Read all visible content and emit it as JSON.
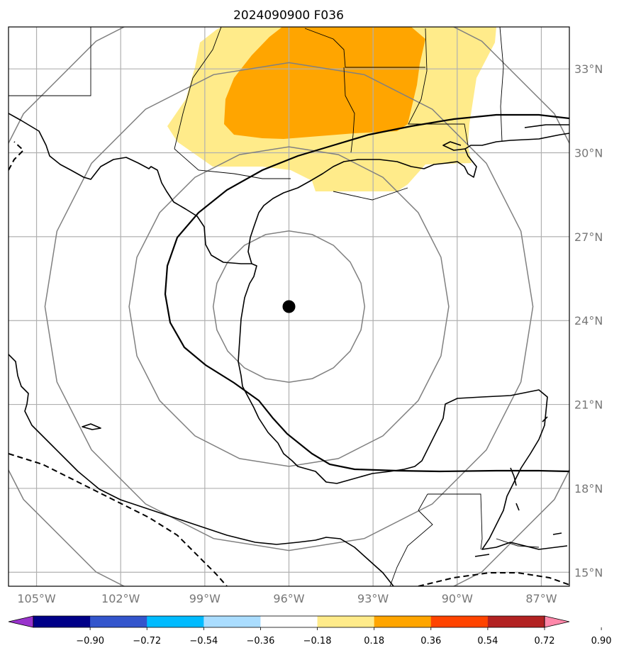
{
  "title": "2024090900 F036",
  "map": {
    "lon_range": [
      -106,
      -86
    ],
    "lat_range": [
      14.5,
      34.5
    ],
    "lon_ticks": [
      -105,
      -102,
      -99,
      -96,
      -93,
      -90,
      -87
    ],
    "lat_ticks": [
      15,
      18,
      21,
      24,
      27,
      30,
      33
    ],
    "lon_labels": [
      "105°W",
      "102°W",
      "99°W",
      "96°W",
      "93°W",
      "90°W",
      "87°W"
    ],
    "lat_labels": [
      "15°N",
      "18°N",
      "21°N",
      "24°N",
      "27°N",
      "30°N",
      "33°N"
    ],
    "center": {
      "lon": -96.0,
      "lat": 24.5
    },
    "range_rings_deg": [
      2.7,
      5.7,
      8.7,
      11.7
    ],
    "colors": {
      "level_018_036": "#ffeb8a",
      "level_036_054": "#ffa500"
    }
  },
  "colorbar": {
    "colors": [
      "#9933cc",
      "#000088",
      "#3355cc",
      "#00bbff",
      "#aaddff",
      "#ffffff",
      "#ffeb8a",
      "#ffa500",
      "#ff4400",
      "#b22222",
      "#ff88aa"
    ],
    "tick_labels": [
      "−0.90",
      "−0.72",
      "−0.54",
      "−0.36",
      "−0.18",
      "0.18",
      "0.36",
      "0.54",
      "0.72",
      "0.90"
    ]
  }
}
